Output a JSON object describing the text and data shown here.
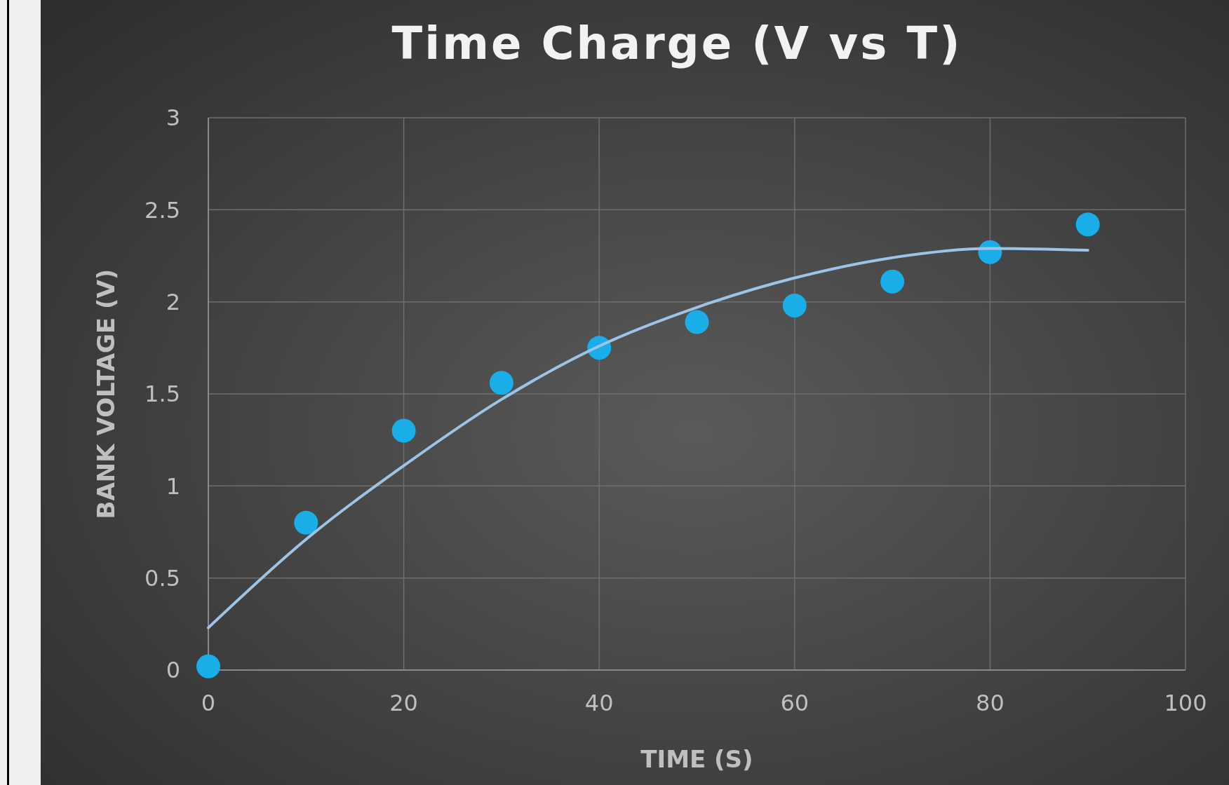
{
  "chart_data": {
    "type": "scatter",
    "title": "Time Charge (V vs T)",
    "xlabel": "TIME (S)",
    "ylabel": "BANK VOLTAGE (V)",
    "x": [
      0,
      10,
      20,
      30,
      40,
      50,
      60,
      70,
      80,
      90
    ],
    "series": [
      {
        "marker": "circle",
        "color": "#1aaee8",
        "values": [
          0.02,
          0.8,
          1.3,
          1.56,
          1.75,
          1.89,
          1.98,
          2.11,
          2.27,
          2.42
        ]
      },
      {
        "type": "line",
        "color": "#9dc3e6",
        "x": [
          0,
          10,
          20,
          30,
          40,
          50,
          60,
          70,
          80,
          90
        ],
        "values": [
          0.23,
          0.71,
          1.11,
          1.47,
          1.76,
          1.97,
          2.13,
          2.24,
          2.29,
          2.28
        ]
      }
    ],
    "xlim": [
      0,
      100
    ],
    "xticks": [
      0,
      20,
      40,
      60,
      80,
      100
    ],
    "ylim": [
      0,
      3
    ],
    "yticks": [
      0,
      0.5,
      1,
      1.5,
      2,
      2.5,
      3
    ],
    "grid": true,
    "line_style": "solid"
  }
}
